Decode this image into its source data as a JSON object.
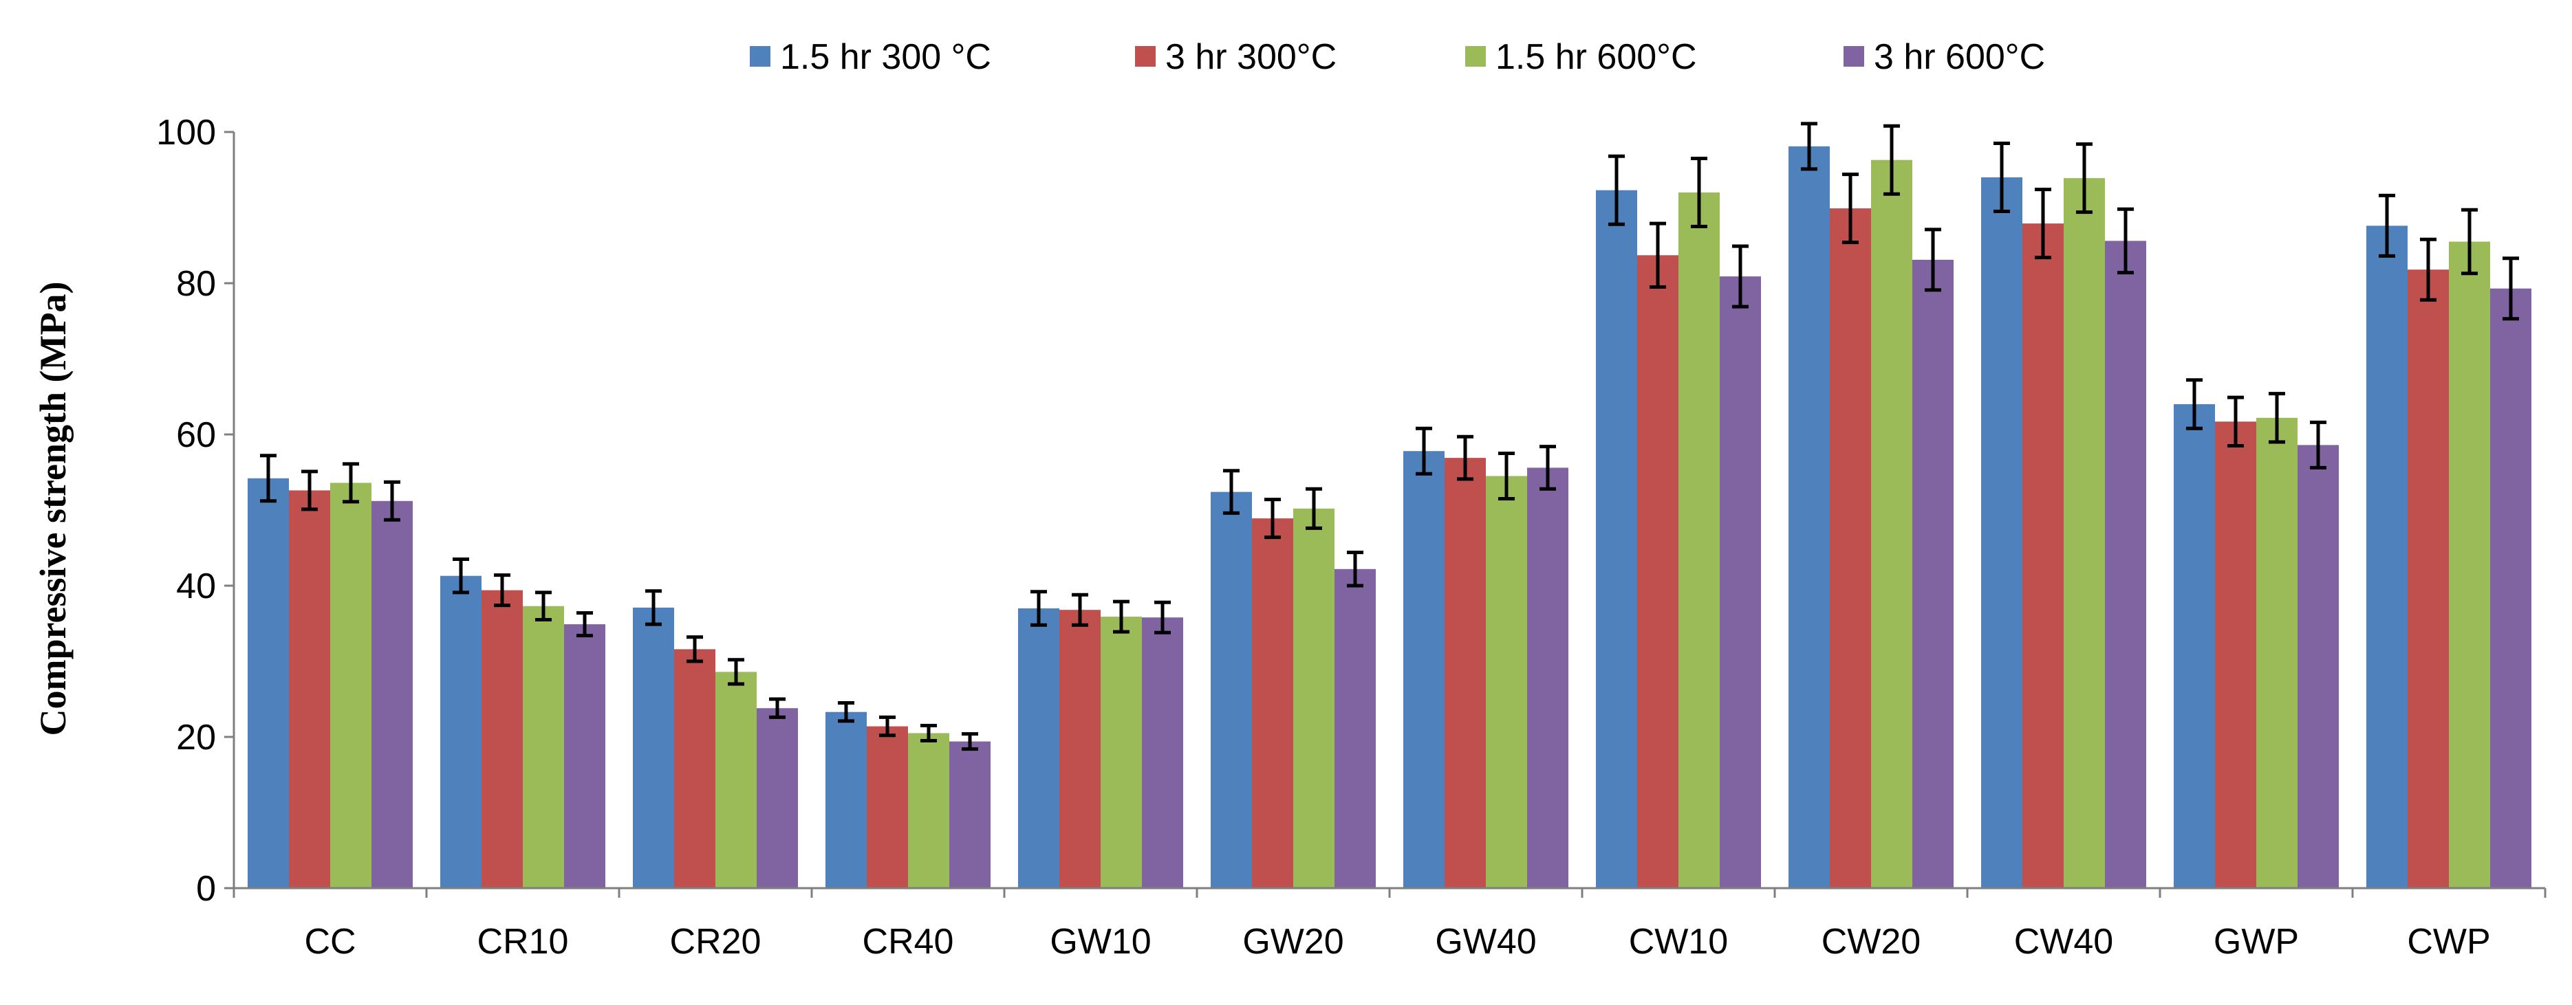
{
  "chart_data": {
    "type": "bar",
    "title": "",
    "xlabel": "",
    "ylabel": "Compressive strength (MPa)",
    "ylim": [
      0,
      100
    ],
    "yticks": [
      0,
      20,
      40,
      60,
      80,
      100
    ],
    "legend_position": "top",
    "categories": [
      "CC",
      "CR10",
      "CR20",
      "CR40",
      "GW10",
      "GW20",
      "GW40",
      "CW10",
      "CW20",
      "CW40",
      "GWP",
      "CWP"
    ],
    "series": [
      {
        "name": "1.5 hr 300 °C",
        "color": "#4f81bd",
        "values": [
          54.2,
          41.3,
          37.1,
          23.3,
          37.0,
          52.4,
          57.8,
          92.3,
          98.1,
          94.0,
          64.0,
          87.6
        ],
        "errors": [
          3.0,
          2.2,
          2.2,
          1.2,
          2.2,
          2.8,
          3.0,
          4.5,
          3.0,
          4.5,
          3.2,
          4.0
        ]
      },
      {
        "name": "3 hr 300°C",
        "color": "#c0504d",
        "values": [
          52.6,
          39.4,
          31.6,
          21.4,
          36.8,
          48.9,
          56.9,
          83.7,
          89.9,
          87.9,
          61.7,
          81.8
        ],
        "errors": [
          2.5,
          2.0,
          1.6,
          1.2,
          2.0,
          2.5,
          2.8,
          4.2,
          4.5,
          4.5,
          3.2,
          4.0
        ]
      },
      {
        "name": "1.5 hr 600°C",
        "color": "#9bbb59",
        "values": [
          53.6,
          37.3,
          28.6,
          20.5,
          35.9,
          50.2,
          54.5,
          92.0,
          96.3,
          93.9,
          62.2,
          85.5
        ],
        "errors": [
          2.5,
          1.8,
          1.6,
          1.0,
          2.0,
          2.6,
          3.0,
          4.5,
          4.5,
          4.5,
          3.2,
          4.2
        ]
      },
      {
        "name": "3 hr 600°C",
        "color": "#8064a2",
        "values": [
          51.2,
          34.9,
          23.8,
          19.4,
          35.8,
          42.2,
          55.6,
          80.9,
          83.1,
          85.6,
          58.6,
          79.3
        ],
        "errors": [
          2.5,
          1.5,
          1.2,
          1.0,
          2.0,
          2.2,
          2.8,
          4.0,
          4.0,
          4.2,
          3.0,
          4.0
        ]
      }
    ]
  }
}
